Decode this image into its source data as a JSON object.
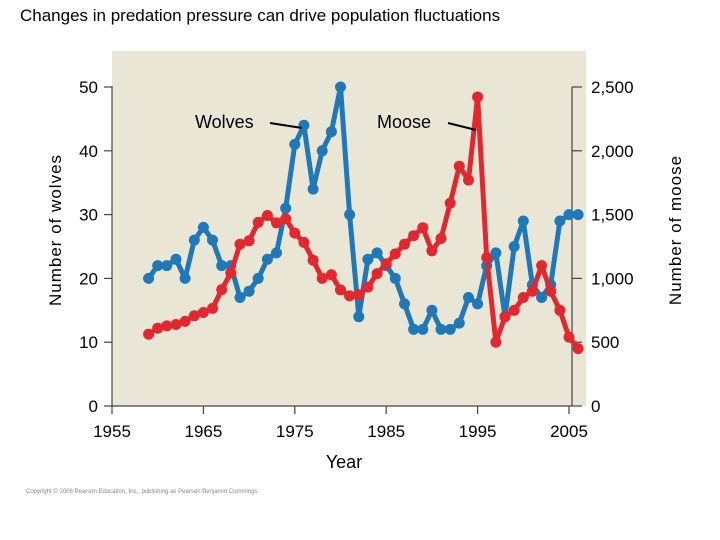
{
  "title": "Changes in predation pressure can drive population fluctuations",
  "copyright": "Copyright © 2008 Pearson Education, Inc., publishing as Pearson Benjamin Cummings",
  "colors": {
    "plot_background": "#e9e6d6",
    "wolves": "#1f78b8",
    "moose": "#e2272f",
    "axis": "#444444"
  },
  "chart_data": {
    "type": "line",
    "title": "Changes in predation pressure can drive population fluctuations",
    "xlabel": "Year",
    "ylabel_left": "Number of wolves",
    "ylabel_right": "Number of moose",
    "xlim": [
      1955,
      2006
    ],
    "ylim_left": [
      0,
      50
    ],
    "ylim_right": [
      0,
      2500
    ],
    "x_ticks": [
      1955,
      1965,
      1975,
      1985,
      1995,
      2005
    ],
    "y_left_ticks": [
      0,
      10,
      20,
      30,
      40,
      50
    ],
    "y_right_ticks": [
      0,
      500,
      1000,
      1500,
      2000,
      2500
    ],
    "y_right_tick_labels": [
      "0",
      "500",
      "1,000",
      "1,500",
      "2,000",
      "2,500"
    ],
    "grid": false,
    "series": [
      {
        "name": "Wolves",
        "axis": "left",
        "color": "#1f78b8",
        "x": [
          1959,
          1960,
          1961,
          1962,
          1963,
          1964,
          1965,
          1966,
          1967,
          1968,
          1969,
          1970,
          1971,
          1972,
          1973,
          1974,
          1975,
          1976,
          1977,
          1978,
          1979,
          1980,
          1981,
          1982,
          1983,
          1984,
          1985,
          1986,
          1987,
          1988,
          1989,
          1990,
          1991,
          1992,
          1993,
          1994,
          1995,
          1996,
          1997,
          1998,
          1999,
          2000,
          2001,
          2002,
          2003,
          2004,
          2005,
          2006
        ],
        "values": [
          20,
          22,
          22,
          23,
          20,
          26,
          28,
          26,
          22,
          22,
          17,
          18,
          20,
          23,
          24,
          31,
          41,
          44,
          34,
          40,
          43,
          50,
          30,
          14,
          23,
          24,
          22,
          20,
          16,
          12,
          12,
          15,
          12,
          12,
          13,
          17,
          16,
          22,
          24,
          14,
          25,
          29,
          19,
          17,
          19,
          29,
          30,
          30
        ]
      },
      {
        "name": "Moose",
        "axis": "right",
        "color": "#e2272f",
        "x": [
          1959,
          1960,
          1961,
          1962,
          1963,
          1964,
          1965,
          1966,
          1967,
          1968,
          1969,
          1970,
          1971,
          1972,
          1973,
          1974,
          1975,
          1976,
          1977,
          1978,
          1979,
          1980,
          1981,
          1982,
          1983,
          1984,
          1985,
          1986,
          1987,
          1988,
          1989,
          1990,
          1991,
          1992,
          1993,
          1994,
          1995,
          1996,
          1997,
          1998,
          1999,
          2000,
          2001,
          2002,
          2003,
          2004,
          2005,
          2006
        ],
        "values": [
          563,
          610,
          628,
          639,
          663,
          707,
          733,
          765,
          912,
          1042,
          1268,
          1295,
          1439,
          1493,
          1435,
          1467,
          1355,
          1282,
          1143,
          1001,
          1028,
          910,
          863,
          872,
          932,
          1038,
          1115,
          1192,
          1268,
          1335,
          1397,
          1216,
          1313,
          1590,
          1879,
          1770,
          2422,
          1163,
          500,
          699,
          750,
          850,
          900,
          1100,
          900,
          750,
          540,
          450
        ]
      }
    ],
    "annotations": [
      {
        "label": "Wolves",
        "series": "Wolves"
      },
      {
        "label": "Moose",
        "series": "Moose"
      }
    ]
  }
}
